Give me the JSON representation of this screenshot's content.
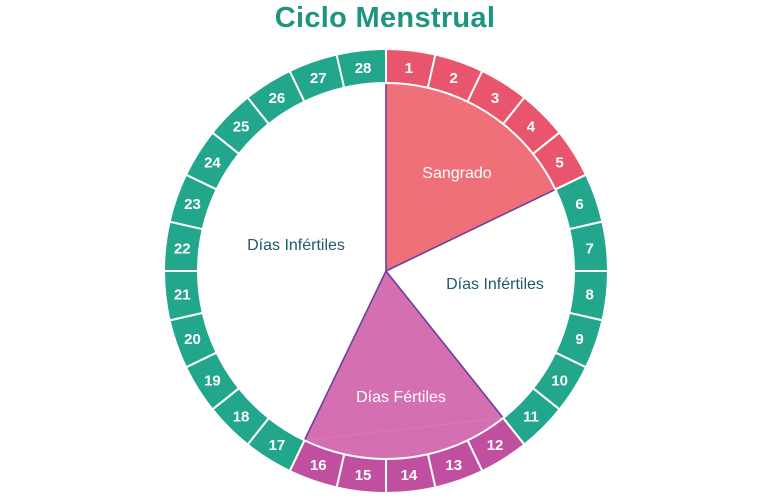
{
  "title": "Ciclo Menstrual",
  "colors": {
    "title": "#1e9580",
    "ring_default": "#22a68c",
    "ring_bleeding": "#e9556d",
    "ring_fertile": "#c0509f",
    "sector_bleeding": "#f07079",
    "sector_fertile": "#d46fb2",
    "sector_infertile": "#ffffff",
    "label_dark": "#1d5a6b",
    "label_light": "#ffffff",
    "divider": "#6b3fa0"
  },
  "days": [
    {
      "label": "1",
      "phase": "bleeding"
    },
    {
      "label": "2",
      "phase": "bleeding"
    },
    {
      "label": "3",
      "phase": "bleeding"
    },
    {
      "label": "4",
      "phase": "bleeding"
    },
    {
      "label": "5",
      "phase": "bleeding"
    },
    {
      "label": "6",
      "phase": "infertile"
    },
    {
      "label": "7",
      "phase": "infertile"
    },
    {
      "label": "8",
      "phase": "infertile"
    },
    {
      "label": "9",
      "phase": "infertile"
    },
    {
      "label": "10",
      "phase": "infertile"
    },
    {
      "label": "11",
      "phase": "infertile"
    },
    {
      "label": "12",
      "phase": "fertile"
    },
    {
      "label": "13",
      "phase": "fertile"
    },
    {
      "label": "14",
      "phase": "fertile"
    },
    {
      "label": "15",
      "phase": "fertile"
    },
    {
      "label": "16",
      "phase": "fertile"
    },
    {
      "label": "17",
      "phase": "infertile"
    },
    {
      "label": "18",
      "phase": "infertile"
    },
    {
      "label": "19",
      "phase": "infertile"
    },
    {
      "label": "20",
      "phase": "infertile"
    },
    {
      "label": "21",
      "phase": "infertile"
    },
    {
      "label": "22",
      "phase": "infertile"
    },
    {
      "label": "23",
      "phase": "infertile"
    },
    {
      "label": "24",
      "phase": "infertile"
    },
    {
      "label": "25",
      "phase": "infertile"
    },
    {
      "label": "26",
      "phase": "infertile"
    },
    {
      "label": "27",
      "phase": "infertile"
    },
    {
      "label": "28",
      "phase": "infertile"
    }
  ],
  "sectors": {
    "bleeding": "Sangrado",
    "infertile_after": "Días Infértiles",
    "fertile": "Días Fértiles",
    "infertile_before": "Días Infértiles"
  }
}
